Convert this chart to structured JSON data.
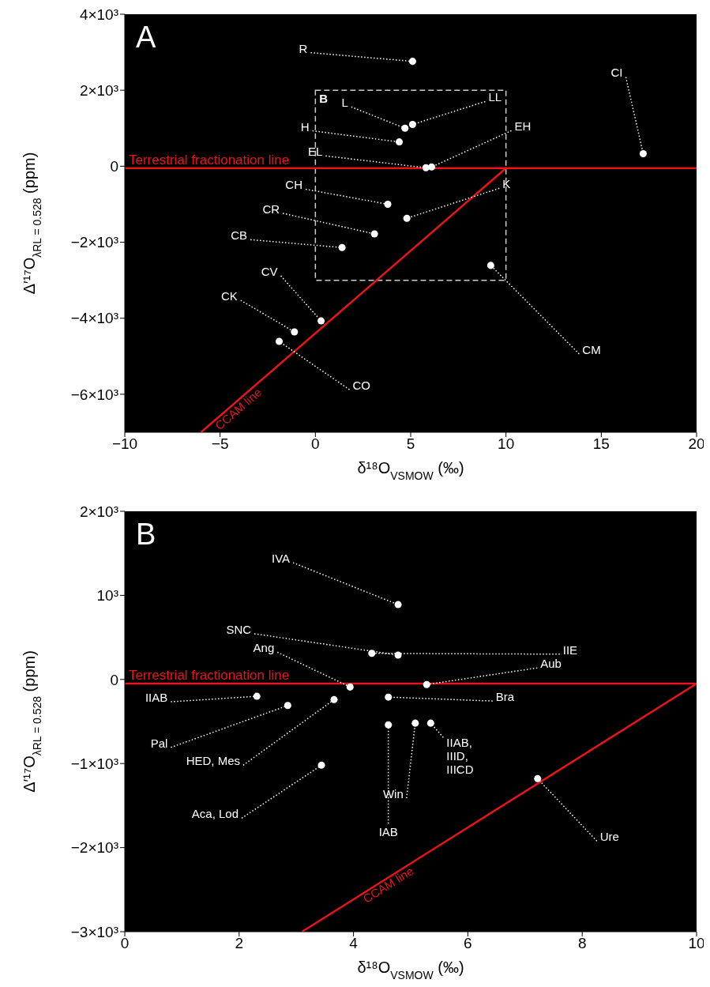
{
  "chart_data": [
    {
      "type": "scatter",
      "title": "A",
      "xlabel": "δ¹⁸O$_{VSMOW}$ (‰)",
      "ylabel": "Δ′¹⁷O$_{λRL = 0.528}$ (ppm)",
      "xlim": [
        -10,
        20
      ],
      "xticks": [
        {
          "value": -10,
          "label": "−10"
        },
        {
          "value": -5,
          "label": "−5"
        },
        0,
        5,
        10,
        15,
        20
      ],
      "ylim": [
        -7000,
        4000
      ],
      "yticks": [
        {
          "value": -6000,
          "label": "−6×10³"
        },
        {
          "value": -4000,
          "label": "−4×10³"
        },
        {
          "value": -2000,
          "label": "−2×10³"
        },
        0,
        {
          "value": 2000,
          "label": "2×10³"
        },
        {
          "value": 4000,
          "label": "4×10³"
        }
      ],
      "grid": false,
      "legend": false,
      "series": [
        {
          "name": "CCAM line",
          "type": "line",
          "marker": "none",
          "color": "#e8141c",
          "line_style": "solid",
          "x": [
            -6,
            10
          ],
          "values": [
            -7000,
            -50
          ]
        },
        {
          "marker": "circle",
          "color": "#ffffff",
          "x": [
            5.1,
            4.7,
            5.1,
            4.4,
            5.8,
            6.1,
            17.2,
            3.8,
            4.8,
            3.1,
            1.4,
            9.2,
            0.3,
            -1.1,
            -1.9
          ],
          "values": [
            2760,
            1000,
            1100,
            640,
            -40,
            -20,
            330,
            -1000,
            -1370,
            -1780,
            -2140,
            -2610,
            -4070,
            -4360,
            -4610
          ]
        }
      ],
      "ref_lines": [
        {
          "axis": "y",
          "value": -50,
          "label": "Terrestrial fractionation line",
          "color": "#e8141c"
        }
      ],
      "annotations": [
        {
          "text": "R",
          "x": 5.1,
          "y": 2760
        },
        {
          "text": "L",
          "x": 4.7,
          "y": 1000
        },
        {
          "text": "LL",
          "x": 5.1,
          "y": 1100
        },
        {
          "text": "H",
          "x": 4.4,
          "y": 640
        },
        {
          "text": "EL",
          "x": 5.8,
          "y": -40
        },
        {
          "text": "EH",
          "x": 6.1,
          "y": -20
        },
        {
          "text": "CI",
          "x": 17.2,
          "y": 330
        },
        {
          "text": "CH",
          "x": 3.8,
          "y": -1000
        },
        {
          "text": "K",
          "x": 4.8,
          "y": -1370
        },
        {
          "text": "CR",
          "x": 3.1,
          "y": -1780
        },
        {
          "text": "CB",
          "x": 1.4,
          "y": -2140
        },
        {
          "text": "CM",
          "x": 9.2,
          "y": -2610
        },
        {
          "text": "CV",
          "x": 0.3,
          "y": -4070
        },
        {
          "text": "CK",
          "x": -1.1,
          "y": -4360
        },
        {
          "text": "CO",
          "x": -1.9,
          "y": -4610
        }
      ]
    },
    {
      "type": "scatter",
      "title": "B",
      "xlabel": "δ¹⁸O$_{VSMOW}$ (‰)",
      "ylabel": "Δ′¹⁷O$_{λRL = 0.528}$ (ppm)",
      "xlim": [
        0,
        10
      ],
      "xticks": [
        0,
        2,
        4,
        6,
        8,
        10
      ],
      "ylim": [
        -3000,
        2000
      ],
      "yticks": [
        {
          "value": -3000,
          "label": "−3×10³"
        },
        {
          "value": -2000,
          "label": "−2×10³"
        },
        {
          "value": -1000,
          "label": "−1×10³"
        },
        0,
        {
          "value": 1000,
          "label": "10³"
        },
        {
          "value": 2000,
          "label": "2×10³"
        }
      ],
      "grid": false,
      "legend": false,
      "series": [
        {
          "name": "CCAM line",
          "type": "line",
          "marker": "none",
          "color": "#e8141c",
          "line_style": "solid",
          "x": [
            3.1,
            10
          ],
          "values": [
            -3000,
            -50
          ]
        },
        {
          "marker": "circle",
          "color": "#ffffff",
          "x": [
            4.78,
            4.32,
            4.78,
            3.94,
            5.28,
            4.61,
            2.31,
            2.85,
            3.66,
            4.61,
            5.08,
            5.35,
            3.44,
            7.22
          ],
          "values": [
            890,
            310,
            290,
            -90,
            -60,
            -210,
            -200,
            -310,
            -240,
            -540,
            -520,
            -520,
            -1020,
            -1180
          ]
        }
      ],
      "ref_lines": [
        {
          "axis": "y",
          "value": -50,
          "label": "Terrestrial fractionation line",
          "color": "#e8141c"
        }
      ],
      "annotations": [
        {
          "text": "IVA",
          "x": 4.78,
          "y": 890
        },
        {
          "text": "IIE",
          "x": 4.32,
          "y": 310
        },
        {
          "text": "SNC",
          "x": 4.78,
          "y": 290
        },
        {
          "text": "Ang",
          "x": 3.94,
          "y": -90
        },
        {
          "text": "Aub",
          "x": 5.28,
          "y": -60
        },
        {
          "text": "Bra",
          "x": 4.61,
          "y": -210
        },
        {
          "text": "IIAB",
          "x": 2.31,
          "y": -200
        },
        {
          "text": "Pal",
          "x": 2.85,
          "y": -310
        },
        {
          "text": "HED, Mes",
          "x": 3.66,
          "y": -240
        },
        {
          "text": "IAB",
          "x": 4.61,
          "y": -540
        },
        {
          "text": "Win",
          "x": 5.08,
          "y": -520
        },
        {
          "text": "IIAB, IIID, IIICD",
          "x": 5.35,
          "y": -520
        },
        {
          "text": "Aca, Lod",
          "x": 3.44,
          "y": -1020
        },
        {
          "text": "Ure",
          "x": 7.22,
          "y": -1180
        }
      ]
    }
  ]
}
